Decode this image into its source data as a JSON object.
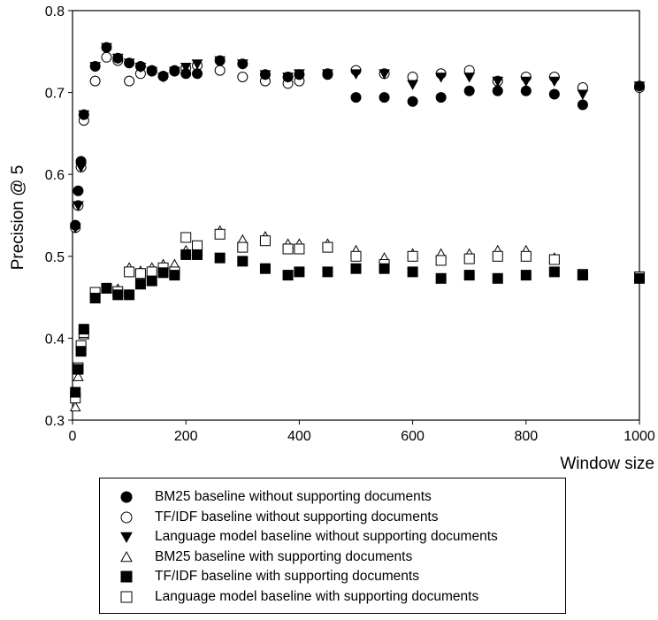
{
  "chart_data": {
    "type": "scatter",
    "title": "",
    "xlabel": "Window size",
    "ylabel": "Precision @ 5",
    "xlim": [
      0,
      1000
    ],
    "ylim": [
      0.3,
      0.8
    ],
    "xticks": [
      0,
      200,
      400,
      600,
      800,
      1000
    ],
    "yticks": [
      0.3,
      0.4,
      0.5,
      0.6,
      0.7,
      0.8
    ],
    "xtick_labels": [
      "0",
      "200",
      "400",
      "600",
      "800",
      "1000"
    ],
    "ytick_labels": [
      "0.3",
      "0.4",
      "0.5",
      "0.6",
      "0.7",
      "0.8"
    ],
    "grid": false,
    "legend_position": "below",
    "series": [
      {
        "name": "BM25 baseline without supporting documents",
        "marker": "circle-filled",
        "points": [
          [
            5,
            0.538
          ],
          [
            10,
            0.58
          ],
          [
            15,
            0.616
          ],
          [
            20,
            0.673
          ],
          [
            40,
            0.732
          ],
          [
            60,
            0.755
          ],
          [
            80,
            0.742
          ],
          [
            100,
            0.736
          ],
          [
            120,
            0.732
          ],
          [
            140,
            0.727
          ],
          [
            160,
            0.72
          ],
          [
            180,
            0.726
          ],
          [
            200,
            0.723
          ],
          [
            220,
            0.723
          ],
          [
            260,
            0.739
          ],
          [
            300,
            0.735
          ],
          [
            340,
            0.722
          ],
          [
            380,
            0.719
          ],
          [
            400,
            0.722
          ],
          [
            450,
            0.722
          ],
          [
            500,
            0.694
          ],
          [
            550,
            0.694
          ],
          [
            600,
            0.689
          ],
          [
            650,
            0.694
          ],
          [
            700,
            0.702
          ],
          [
            750,
            0.702
          ],
          [
            800,
            0.702
          ],
          [
            850,
            0.698
          ],
          [
            900,
            0.685
          ],
          [
            1000,
            0.708
          ]
        ]
      },
      {
        "name": "TF/IDF baseline without supporting documents",
        "marker": "circle-open",
        "points": [
          [
            5,
            0.535
          ],
          [
            10,
            0.562
          ],
          [
            15,
            0.609
          ],
          [
            20,
            0.666
          ],
          [
            40,
            0.714
          ],
          [
            60,
            0.743
          ],
          [
            80,
            0.739
          ],
          [
            100,
            0.714
          ],
          [
            120,
            0.723
          ],
          [
            140,
            0.726
          ],
          [
            160,
            0.72
          ],
          [
            180,
            0.727
          ],
          [
            200,
            0.73
          ],
          [
            220,
            0.733
          ],
          [
            260,
            0.727
          ],
          [
            300,
            0.719
          ],
          [
            340,
            0.714
          ],
          [
            380,
            0.711
          ],
          [
            400,
            0.714
          ],
          [
            450,
            0.723
          ],
          [
            500,
            0.727
          ],
          [
            550,
            0.723
          ],
          [
            600,
            0.719
          ],
          [
            650,
            0.723
          ],
          [
            700,
            0.727
          ],
          [
            750,
            0.714
          ],
          [
            800,
            0.719
          ],
          [
            850,
            0.719
          ],
          [
            900,
            0.706
          ],
          [
            1000,
            0.706
          ]
        ]
      },
      {
        "name": "Language model baseline without supporting documents",
        "marker": "triangle-down-filled",
        "points": [
          [
            5,
            0.535
          ],
          [
            10,
            0.562
          ],
          [
            15,
            0.609
          ],
          [
            20,
            0.673
          ],
          [
            40,
            0.732
          ],
          [
            60,
            0.755
          ],
          [
            80,
            0.742
          ],
          [
            100,
            0.736
          ],
          [
            120,
            0.731
          ],
          [
            140,
            0.726
          ],
          [
            160,
            0.719
          ],
          [
            180,
            0.726
          ],
          [
            200,
            0.731
          ],
          [
            220,
            0.735
          ],
          [
            260,
            0.739
          ],
          [
            300,
            0.735
          ],
          [
            340,
            0.722
          ],
          [
            380,
            0.719
          ],
          [
            400,
            0.723
          ],
          [
            450,
            0.723
          ],
          [
            500,
            0.723
          ],
          [
            550,
            0.723
          ],
          [
            600,
            0.71
          ],
          [
            650,
            0.719
          ],
          [
            700,
            0.719
          ],
          [
            750,
            0.714
          ],
          [
            800,
            0.714
          ],
          [
            850,
            0.714
          ],
          [
            900,
            0.698
          ],
          [
            1000,
            0.708
          ]
        ]
      },
      {
        "name": "BM25 baseline with supporting documents",
        "marker": "triangle-up-open",
        "points": [
          [
            5,
            0.316
          ],
          [
            10,
            0.353
          ],
          [
            15,
            0.386
          ],
          [
            20,
            0.404
          ],
          [
            40,
            0.452
          ],
          [
            60,
            0.46
          ],
          [
            80,
            0.46
          ],
          [
            100,
            0.486
          ],
          [
            120,
            0.482
          ],
          [
            140,
            0.486
          ],
          [
            160,
            0.49
          ],
          [
            180,
            0.49
          ],
          [
            200,
            0.507
          ],
          [
            220,
            0.507
          ],
          [
            260,
            0.531
          ],
          [
            300,
            0.52
          ],
          [
            340,
            0.524
          ],
          [
            380,
            0.515
          ],
          [
            400,
            0.515
          ],
          [
            450,
            0.515
          ],
          [
            500,
            0.507
          ],
          [
            550,
            0.498
          ],
          [
            600,
            0.503
          ],
          [
            650,
            0.503
          ],
          [
            700,
            0.503
          ],
          [
            750,
            0.507
          ],
          [
            800,
            0.507
          ],
          [
            850,
            0.498
          ],
          [
            900,
            0.476
          ],
          [
            1000,
            0.476
          ]
        ]
      },
      {
        "name": "TF/IDF baseline with supporting documents",
        "marker": "square-filled",
        "points": [
          [
            5,
            0.334
          ],
          [
            10,
            0.362
          ],
          [
            15,
            0.384
          ],
          [
            20,
            0.411
          ],
          [
            40,
            0.449
          ],
          [
            60,
            0.461
          ],
          [
            80,
            0.453
          ],
          [
            100,
            0.453
          ],
          [
            120,
            0.466
          ],
          [
            140,
            0.47
          ],
          [
            160,
            0.48
          ],
          [
            180,
            0.477
          ],
          [
            200,
            0.502
          ],
          [
            220,
            0.502
          ],
          [
            260,
            0.498
          ],
          [
            300,
            0.494
          ],
          [
            340,
            0.485
          ],
          [
            380,
            0.477
          ],
          [
            400,
            0.481
          ],
          [
            450,
            0.481
          ],
          [
            500,
            0.485
          ],
          [
            550,
            0.485
          ],
          [
            600,
            0.481
          ],
          [
            650,
            0.473
          ],
          [
            700,
            0.477
          ],
          [
            750,
            0.473
          ],
          [
            800,
            0.477
          ],
          [
            850,
            0.481
          ],
          [
            900,
            0.477
          ],
          [
            1000,
            0.473
          ]
        ]
      },
      {
        "name": "Language model baseline with supporting documents",
        "marker": "square-open",
        "points": [
          [
            5,
            0.327
          ],
          [
            10,
            0.364
          ],
          [
            15,
            0.391
          ],
          [
            20,
            0.407
          ],
          [
            40,
            0.456
          ],
          [
            60,
            0.461
          ],
          [
            80,
            0.457
          ],
          [
            100,
            0.481
          ],
          [
            120,
            0.479
          ],
          [
            140,
            0.481
          ],
          [
            160,
            0.486
          ],
          [
            180,
            0.481
          ],
          [
            200,
            0.523
          ],
          [
            220,
            0.513
          ],
          [
            260,
            0.527
          ],
          [
            300,
            0.511
          ],
          [
            340,
            0.519
          ],
          [
            380,
            0.509
          ],
          [
            400,
            0.509
          ],
          [
            450,
            0.511
          ],
          [
            500,
            0.5
          ],
          [
            550,
            0.49
          ],
          [
            600,
            0.5
          ],
          [
            650,
            0.495
          ],
          [
            700,
            0.497
          ],
          [
            750,
            0.5
          ],
          [
            800,
            0.5
          ],
          [
            850,
            0.496
          ],
          [
            900,
            0.478
          ],
          [
            1000,
            0.475
          ]
        ]
      }
    ]
  }
}
